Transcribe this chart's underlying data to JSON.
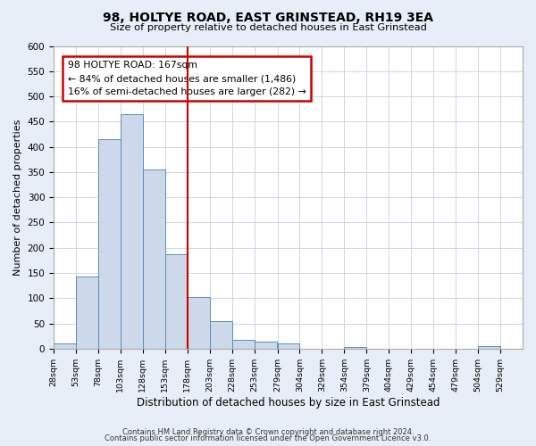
{
  "title": "98, HOLTYE ROAD, EAST GRINSTEAD, RH19 3EA",
  "subtitle": "Size of property relative to detached houses in East Grinstead",
  "xlabel": "Distribution of detached houses by size in East Grinstead",
  "ylabel": "Number of detached properties",
  "bin_edges": [
    28,
    53,
    78,
    103,
    128,
    153,
    178,
    203,
    228,
    253,
    279,
    304,
    329,
    354,
    379,
    404,
    429,
    454,
    479,
    504,
    529
  ],
  "bar_heights": [
    10,
    143,
    415,
    465,
    355,
    188,
    103,
    55,
    18,
    13,
    10,
    0,
    0,
    3,
    0,
    0,
    0,
    0,
    0,
    5
  ],
  "bar_color": "#ccd9ea",
  "bar_edge_color": "#5b8db8",
  "vline_x": 178,
  "vline_color": "#cc0000",
  "annotation_title": "98 HOLTYE ROAD: 167sqm",
  "annotation_line1": "← 84% of detached houses are smaller (1,486)",
  "annotation_line2": "16% of semi-detached houses are larger (282) →",
  "annotation_box_color": "#cc0000",
  "ylim": [
    0,
    600
  ],
  "yticks": [
    0,
    50,
    100,
    150,
    200,
    250,
    300,
    350,
    400,
    450,
    500,
    550,
    600
  ],
  "tick_labels": [
    "28sqm",
    "53sqm",
    "78sqm",
    "103sqm",
    "128sqm",
    "153sqm",
    "178sqm",
    "203sqm",
    "228sqm",
    "253sqm",
    "279sqm",
    "304sqm",
    "329sqm",
    "354sqm",
    "379sqm",
    "404sqm",
    "429sqm",
    "454sqm",
    "479sqm",
    "504sqm",
    "529sqm"
  ],
  "footer_line1": "Contains HM Land Registry data © Crown copyright and database right 2024.",
  "footer_line2": "Contains public sector information licensed under the Open Government Licence v3.0.",
  "bg_color": "#e8eef7",
  "plot_bg_color": "#ffffff",
  "grid_color": "#c8d0dd"
}
